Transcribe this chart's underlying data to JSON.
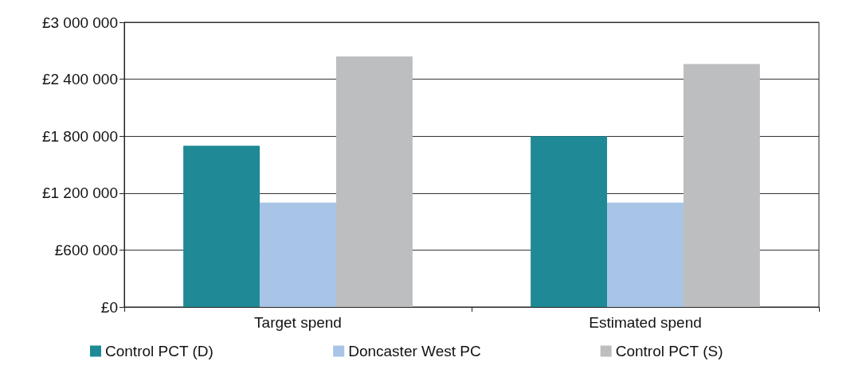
{
  "chart_data": {
    "type": "bar",
    "categories": [
      "Target spend",
      "Estimated spend"
    ],
    "series": [
      {
        "name": "Control PCT (D)",
        "color": "#1f8a96",
        "values": [
          1700000,
          1800000
        ]
      },
      {
        "name": "Doncaster West PC",
        "color": "#a8c4e6",
        "values": [
          1100000,
          1100000
        ]
      },
      {
        "name": "Control PCT (S)",
        "color": "#bcbec0",
        "values": [
          2640000,
          2560000
        ]
      }
    ],
    "ylim": [
      0,
      3000000
    ],
    "yticks": [
      {
        "value": 0,
        "label": "£0"
      },
      {
        "value": 600000,
        "label": "£600 000"
      },
      {
        "value": 1200000,
        "label": "£1 200 000"
      },
      {
        "value": 1800000,
        "label": "£1 800 000"
      },
      {
        "value": 2400000,
        "label": "£2 400 000"
      },
      {
        "value": 3000000,
        "label": "£3 000 000"
      }
    ],
    "grid": "y",
    "legend": "bottom"
  }
}
